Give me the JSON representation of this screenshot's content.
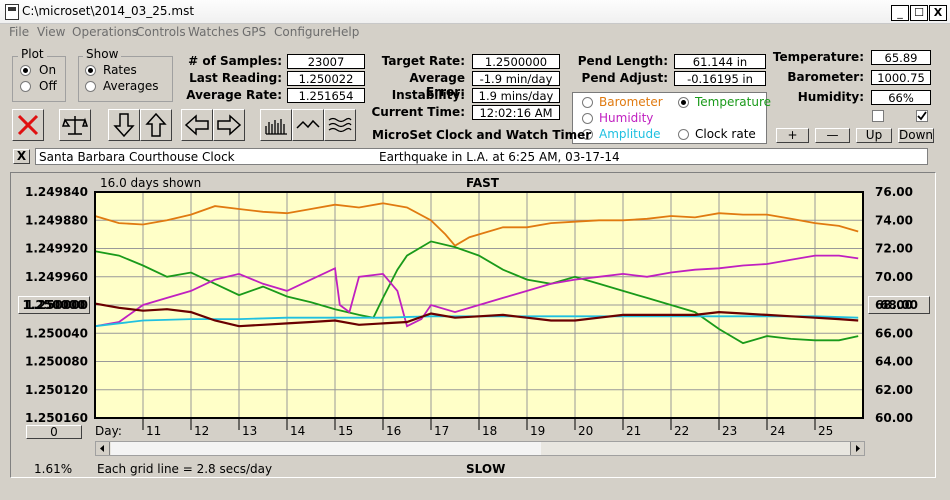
{
  "window": {
    "title": "C:\\microset\\2014_03_25.mst",
    "min": "_",
    "max": "☐",
    "close": "X"
  },
  "menu": [
    "File",
    "View",
    "Operations",
    "Controls",
    "Watches",
    "GPS",
    "Configure",
    "Help"
  ],
  "plot_group": {
    "title": "Plot",
    "on": "On",
    "off": "Off",
    "selected": "On"
  },
  "show_group": {
    "title": "Show",
    "rates": "Rates",
    "averages": "Averages",
    "selected": "Rates"
  },
  "stats": {
    "samples_label": "# of Samples:",
    "samples": "23007",
    "last_label": "Last Reading:",
    "last": "1.250022",
    "avg_label": "Average Rate:",
    "avg": "1.251654"
  },
  "rate": {
    "target_label": "Target Rate:",
    "target": "1.2500000",
    "error_label": "Average Error:",
    "error": "-1.9 min/day",
    "instab_label": "Instability:",
    "instab": "1.9 mins/day",
    "time_label": "Current Time:",
    "time": "12:02:16 AM"
  },
  "pend": {
    "length_label": "Pend Length:",
    "length": "61.144 in",
    "adjust_label": "Pend Adjust:",
    "adjust": "-0.16195 in"
  },
  "env": {
    "temp_label": "Temperature:",
    "temp": "65.89",
    "baro_label": "Barometer:",
    "baro": "1000.75",
    "hum_label": "Humidity:",
    "hum": "66%"
  },
  "overlay": {
    "barometer": "Barometer",
    "temperature": "Temperature",
    "humidity": "Humidity",
    "amplitude": "Amplitude",
    "clock_rate": "Clock rate",
    "selected": "Temperature",
    "colors": {
      "barometer": "#e07a10",
      "temperature": "#1a9a1a",
      "humidity": "#c020c0",
      "amplitude": "#20c0e0",
      "clock_rate": "#000000"
    }
  },
  "buttons": {
    "plus": "+",
    "minus": "—",
    "up": "Up",
    "down": "Down",
    "close_x": "X"
  },
  "toolbar_icons": [
    "delete-icon",
    "balance-scale-icon",
    "arrow-down-icon",
    "arrow-up-icon",
    "arrow-left-icon",
    "arrow-right-icon",
    "bar-chart-icon",
    "wave-icon",
    "waves-icon"
  ],
  "app_title": "MicroSet Clock and Watch Timer",
  "clock_name": "Santa Barbara Courthouse Clock",
  "note": "Earthquake in L.A. at 6:25 AM, 03-17-14",
  "chart_meta": {
    "days_shown": "16.0 days shown",
    "fast": "FAST",
    "slow": "SLOW",
    "day_label": "Day:",
    "grid_note": "Each grid line = 2.8 secs/day",
    "percent": "1.61%",
    "left_center_button": "1.250000",
    "right_center_button": "68.00",
    "bottom_left_button": "0"
  },
  "chart_data": {
    "type": "line",
    "x_label": "Day:",
    "x_ticks": [
      "11",
      "12",
      "13",
      "14",
      "15",
      "16",
      "17",
      "18",
      "19",
      "20",
      "21",
      "22",
      "23",
      "24",
      "25"
    ],
    "x_range": [
      10.0,
      26.0
    ],
    "y_left_ticks": [
      "1.249840",
      "1.249880",
      "1.249920",
      "1.249960",
      "1.250000",
      "1.250040",
      "1.250080",
      "1.250120",
      "1.250160"
    ],
    "y_left_range": [
      1.24984,
      1.25016
    ],
    "y_left_inverted": true,
    "y_right_ticks": [
      "76.00",
      "74.00",
      "72.00",
      "70.00",
      "68.00",
      "66.00",
      "64.00",
      "62.00",
      "60.00"
    ],
    "y_right_range": [
      60,
      76
    ],
    "grid": true,
    "series": [
      {
        "key": "barometer",
        "color": "#e07a10",
        "axis": "right",
        "x": [
          10.0,
          10.5,
          11.0,
          11.5,
          12.0,
          12.5,
          13.0,
          13.5,
          14.0,
          14.5,
          15.0,
          15.5,
          16.0,
          16.5,
          17.0,
          17.3,
          17.5,
          17.8,
          18.0,
          18.5,
          19.0,
          19.5,
          20.0,
          20.5,
          21.0,
          21.5,
          22.0,
          22.5,
          23.0,
          23.5,
          24.0,
          24.5,
          25.0,
          25.5,
          25.9
        ],
        "y": [
          74.3,
          73.8,
          73.7,
          74.0,
          74.4,
          75.0,
          74.8,
          74.6,
          74.5,
          74.8,
          75.1,
          74.9,
          75.2,
          74.9,
          74.0,
          73.0,
          72.2,
          72.8,
          73.0,
          73.5,
          73.5,
          73.8,
          73.9,
          74.0,
          74.0,
          74.1,
          74.3,
          74.2,
          74.5,
          74.4,
          74.4,
          74.1,
          73.8,
          73.6,
          73.2
        ]
      },
      {
        "key": "temperature",
        "color": "#1a9a1a",
        "axis": "right",
        "x": [
          10.0,
          10.5,
          11.0,
          11.5,
          12.0,
          12.5,
          13.0,
          13.5,
          14.0,
          14.5,
          15.0,
          15.5,
          15.8,
          16.0,
          16.3,
          16.5,
          17.0,
          17.5,
          18.0,
          18.5,
          19.0,
          19.5,
          20.0,
          20.5,
          21.0,
          21.5,
          22.0,
          22.5,
          23.0,
          23.5,
          24.0,
          24.5,
          25.0,
          25.5,
          25.9
        ],
        "y": [
          71.8,
          71.5,
          70.8,
          70.0,
          70.3,
          69.5,
          68.7,
          69.3,
          68.6,
          68.2,
          67.7,
          67.3,
          67.1,
          68.5,
          70.5,
          71.5,
          72.5,
          72.1,
          71.5,
          70.5,
          69.8,
          69.5,
          70.0,
          69.5,
          69.0,
          68.5,
          68.0,
          67.5,
          66.3,
          65.3,
          65.8,
          65.6,
          65.5,
          65.5,
          65.8
        ]
      },
      {
        "key": "humidity",
        "color": "#c020c0",
        "axis": "right",
        "x": [
          10.0,
          10.5,
          11.0,
          11.5,
          12.0,
          12.5,
          13.0,
          13.5,
          14.0,
          14.5,
          15.0,
          15.1,
          15.3,
          15.5,
          16.0,
          16.3,
          16.5,
          16.8,
          17.0,
          17.5,
          18.0,
          18.5,
          19.0,
          19.5,
          20.0,
          20.5,
          21.0,
          21.5,
          22.0,
          22.5,
          23.0,
          23.5,
          24.0,
          24.5,
          25.0,
          25.5,
          25.9
        ],
        "y": [
          66.5,
          66.8,
          68.0,
          68.5,
          69.0,
          69.8,
          70.2,
          69.5,
          69.0,
          69.8,
          70.6,
          68.0,
          67.5,
          70.0,
          70.2,
          69.0,
          66.5,
          67.0,
          68.0,
          67.5,
          68.0,
          68.5,
          69.0,
          69.5,
          69.8,
          70.0,
          70.2,
          70.0,
          70.3,
          70.5,
          70.6,
          70.8,
          70.9,
          71.2,
          71.5,
          71.5,
          71.3
        ]
      },
      {
        "key": "amplitude",
        "color": "#20c0e0",
        "axis": "right",
        "x": [
          10.0,
          11.0,
          12.0,
          13.0,
          14.0,
          15.0,
          16.0,
          17.0,
          18.0,
          19.0,
          20.0,
          21.0,
          22.0,
          23.0,
          24.0,
          25.0,
          25.9
        ],
        "y": [
          66.5,
          66.9,
          67.0,
          67.0,
          67.1,
          67.1,
          67.1,
          67.2,
          67.2,
          67.2,
          67.2,
          67.2,
          67.2,
          67.2,
          67.2,
          67.2,
          67.1
        ]
      },
      {
        "key": "clock_rate",
        "color": "#6a0000",
        "axis": "left",
        "x": [
          10.0,
          10.5,
          11.0,
          11.5,
          12.0,
          12.5,
          13.0,
          13.5,
          14.0,
          14.5,
          15.0,
          15.5,
          16.0,
          16.5,
          17.0,
          17.5,
          18.0,
          18.5,
          19.0,
          19.5,
          20.0,
          20.5,
          21.0,
          21.5,
          22.0,
          22.5,
          23.0,
          23.5,
          24.0,
          24.5,
          25.0,
          25.5,
          25.9
        ],
        "y": [
          1.249998,
          1.250004,
          1.250008,
          1.250006,
          1.25001,
          1.250022,
          1.25003,
          1.250028,
          1.250026,
          1.250024,
          1.250022,
          1.250028,
          1.250026,
          1.250024,
          1.250012,
          1.250018,
          1.250016,
          1.250014,
          1.250018,
          1.250022,
          1.250022,
          1.250018,
          1.250014,
          1.250014,
          1.250014,
          1.250014,
          1.25001,
          1.250012,
          1.250014,
          1.250016,
          1.250018,
          1.25002,
          1.250022
        ]
      }
    ]
  }
}
